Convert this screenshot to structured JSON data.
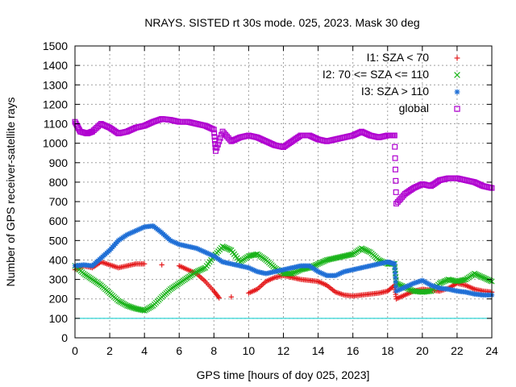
{
  "chart_data": {
    "type": "scatter",
    "title": "NRAYS. SISTED rt 30s mode. 025, 2023. Mask 30 deg",
    "xlabel": "GPS time [hours of doy 025, 2023]",
    "ylabel": "Number of GPS receiver-satellite rays",
    "xlim": [
      0,
      24
    ],
    "ylim": [
      0,
      1500
    ],
    "xticks": [
      0,
      2,
      4,
      6,
      8,
      10,
      12,
      14,
      16,
      18,
      20,
      22,
      24
    ],
    "yticks": [
      0,
      100,
      200,
      300,
      400,
      500,
      600,
      700,
      800,
      900,
      1000,
      1100,
      1200,
      1300,
      1400,
      1500
    ],
    "grid": true,
    "legend_position": "top-right",
    "threshold_line": {
      "y": 100,
      "color": "#00cccc"
    },
    "series": [
      {
        "name": "I1: SZA < 70",
        "color": "#e41a1c",
        "marker": "+",
        "points": [
          [
            0,
            350
          ],
          [
            0.5,
            370
          ],
          [
            1,
            360
          ],
          [
            1.5,
            390
          ],
          [
            2,
            375
          ],
          [
            2.5,
            360
          ],
          [
            3,
            370
          ],
          [
            3.5,
            380
          ],
          [
            4,
            380
          ],
          [
            5,
            375
          ],
          [
            6,
            370
          ],
          [
            6.5,
            350
          ],
          [
            7,
            330
          ],
          [
            7.5,
            290
          ],
          [
            8,
            240
          ],
          [
            8.3,
            205
          ],
          [
            9,
            210
          ],
          [
            10,
            230
          ],
          [
            10.5,
            250
          ],
          [
            11,
            290
          ],
          [
            11.5,
            310
          ],
          [
            12,
            320
          ],
          [
            12.5,
            310
          ],
          [
            13,
            300
          ],
          [
            13.5,
            295
          ],
          [
            14,
            290
          ],
          [
            14.5,
            270
          ],
          [
            15,
            235
          ],
          [
            15.5,
            220
          ],
          [
            16,
            215
          ],
          [
            16.5,
            220
          ],
          [
            17,
            225
          ],
          [
            17.5,
            230
          ],
          [
            18,
            240
          ],
          [
            18.4,
            270
          ],
          [
            18.5,
            200
          ],
          [
            19,
            220
          ],
          [
            19.5,
            240
          ],
          [
            20,
            250
          ],
          [
            20.5,
            245
          ],
          [
            21,
            240
          ],
          [
            21.5,
            255
          ],
          [
            22,
            280
          ],
          [
            22.5,
            270
          ],
          [
            23,
            250
          ],
          [
            23.5,
            240
          ],
          [
            24,
            235
          ]
        ]
      },
      {
        "name": "I2: 70 <= SZA <= 110",
        "color": "#1ab31a",
        "marker": "x",
        "points": [
          [
            0,
            370
          ],
          [
            0.5,
            330
          ],
          [
            1,
            300
          ],
          [
            1.5,
            270
          ],
          [
            2,
            230
          ],
          [
            2.5,
            190
          ],
          [
            3,
            165
          ],
          [
            3.5,
            150
          ],
          [
            4,
            140
          ],
          [
            4.5,
            165
          ],
          [
            5,
            210
          ],
          [
            5.5,
            250
          ],
          [
            6,
            280
          ],
          [
            6.5,
            310
          ],
          [
            7,
            340
          ],
          [
            7.5,
            360
          ],
          [
            8,
            420
          ],
          [
            8.5,
            470
          ],
          [
            9,
            450
          ],
          [
            9.5,
            390
          ],
          [
            10,
            420
          ],
          [
            10.5,
            430
          ],
          [
            11,
            400
          ],
          [
            11.5,
            360
          ],
          [
            12,
            330
          ],
          [
            12.5,
            330
          ],
          [
            13,
            350
          ],
          [
            13.5,
            360
          ],
          [
            14,
            380
          ],
          [
            14.5,
            400
          ],
          [
            15,
            410
          ],
          [
            15.5,
            420
          ],
          [
            16,
            430
          ],
          [
            16.5,
            460
          ],
          [
            17,
            440
          ],
          [
            17.5,
            400
          ],
          [
            18,
            380
          ],
          [
            18.4,
            380
          ],
          [
            18.5,
            280
          ],
          [
            19,
            260
          ],
          [
            19.5,
            240
          ],
          [
            20,
            235
          ],
          [
            20.5,
            240
          ],
          [
            21,
            280
          ],
          [
            21.5,
            300
          ],
          [
            22,
            290
          ],
          [
            22.5,
            300
          ],
          [
            23,
            330
          ],
          [
            23.5,
            310
          ],
          [
            24,
            290
          ]
        ]
      },
      {
        "name": "I3: SZA > 110",
        "color": "#1f6fd6",
        "marker": "*",
        "points": [
          [
            0,
            370
          ],
          [
            0.5,
            375
          ],
          [
            1,
            370
          ],
          [
            1.5,
            410
          ],
          [
            2,
            450
          ],
          [
            2.5,
            500
          ],
          [
            3,
            530
          ],
          [
            3.5,
            550
          ],
          [
            4,
            570
          ],
          [
            4.5,
            575
          ],
          [
            5,
            540
          ],
          [
            5.5,
            500
          ],
          [
            6,
            480
          ],
          [
            6.5,
            470
          ],
          [
            7,
            460
          ],
          [
            7.5,
            440
          ],
          [
            8,
            420
          ],
          [
            8.5,
            390
          ],
          [
            9,
            380
          ],
          [
            9.5,
            370
          ],
          [
            10,
            360
          ],
          [
            10.5,
            340
          ],
          [
            11,
            330
          ],
          [
            11.5,
            340
          ],
          [
            12,
            350
          ],
          [
            12.5,
            360
          ],
          [
            13,
            370
          ],
          [
            13.5,
            370
          ],
          [
            14,
            340
          ],
          [
            14.5,
            320
          ],
          [
            15,
            320
          ],
          [
            15.5,
            340
          ],
          [
            16,
            350
          ],
          [
            16.5,
            360
          ],
          [
            17,
            370
          ],
          [
            17.5,
            380
          ],
          [
            18,
            390
          ],
          [
            18.4,
            380
          ],
          [
            18.5,
            240
          ],
          [
            19,
            260
          ],
          [
            19.5,
            280
          ],
          [
            20,
            295
          ],
          [
            20.5,
            270
          ],
          [
            21,
            255
          ],
          [
            21.5,
            250
          ],
          [
            22,
            240
          ],
          [
            22.5,
            235
          ],
          [
            23,
            225
          ],
          [
            23.5,
            220
          ],
          [
            24,
            220
          ]
        ]
      },
      {
        "name": "global",
        "color": "#b000d0",
        "marker": "square",
        "points": [
          [
            0,
            1110
          ],
          [
            0.3,
            1060
          ],
          [
            0.7,
            1050
          ],
          [
            1,
            1060
          ],
          [
            1.5,
            1100
          ],
          [
            2,
            1080
          ],
          [
            2.5,
            1050
          ],
          [
            3,
            1060
          ],
          [
            3.5,
            1080
          ],
          [
            4,
            1090
          ],
          [
            4.5,
            1110
          ],
          [
            5,
            1125
          ],
          [
            5.5,
            1120
          ],
          [
            6,
            1110
          ],
          [
            6.5,
            1110
          ],
          [
            7,
            1100
          ],
          [
            7.5,
            1090
          ],
          [
            8,
            1070
          ],
          [
            8.1,
            960
          ],
          [
            8.5,
            1060
          ],
          [
            9,
            1010
          ],
          [
            9.5,
            1030
          ],
          [
            10,
            1040
          ],
          [
            10.5,
            1030
          ],
          [
            11,
            1010
          ],
          [
            11.5,
            990
          ],
          [
            12,
            980
          ],
          [
            12.5,
            1010
          ],
          [
            13,
            1040
          ],
          [
            13.5,
            1040
          ],
          [
            14,
            1020
          ],
          [
            14.5,
            1010
          ],
          [
            15,
            1020
          ],
          [
            15.5,
            1030
          ],
          [
            16,
            1040
          ],
          [
            16.5,
            1060
          ],
          [
            17,
            1040
          ],
          [
            17.5,
            1030
          ],
          [
            18,
            1040
          ],
          [
            18.4,
            1040
          ],
          [
            18.5,
            690
          ],
          [
            19,
            740
          ],
          [
            19.5,
            770
          ],
          [
            20,
            790
          ],
          [
            20.5,
            780
          ],
          [
            21,
            810
          ],
          [
            21.5,
            820
          ],
          [
            22,
            820
          ],
          [
            22.5,
            810
          ],
          [
            23,
            800
          ],
          [
            23.5,
            780
          ],
          [
            24,
            770
          ]
        ]
      }
    ]
  }
}
